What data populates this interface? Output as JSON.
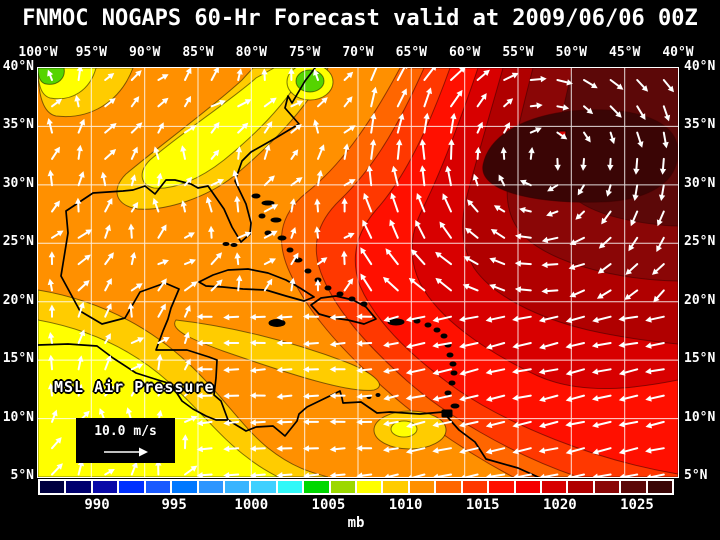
{
  "header": {
    "title": "FNMOC NOGAPS 60-Hr Forecast valid at 2009/06/06 00Z"
  },
  "map": {
    "lon_labels": [
      "100°W",
      "95°W",
      "90°W",
      "85°W",
      "80°W",
      "75°W",
      "70°W",
      "65°W",
      "60°W",
      "55°W",
      "50°W",
      "45°W",
      "40°W"
    ],
    "lat_labels": [
      "40°N",
      "35°N",
      "30°N",
      "25°N",
      "20°N",
      "15°N",
      "10°N",
      "5°N"
    ],
    "overlay_label": "MSL Air Pressure",
    "wind_legend": {
      "speed_label": "10.0 m/s"
    },
    "green_patch_color": "#55d400",
    "grid_color": "#ffffff",
    "coast_color": "#000000",
    "arrow_color": "#ffffff"
  },
  "colorbar": {
    "tick_labels": [
      "990",
      "995",
      "1000",
      "1005",
      "1010",
      "1015",
      "1020",
      "1025"
    ],
    "unit": "mb",
    "cell_colors": [
      "#000040",
      "#00006e",
      "#0a0aa8",
      "#0030ff",
      "#1a5aff",
      "#0078ff",
      "#2e96ff",
      "#38b4ff",
      "#40d0ff",
      "#30f8f8",
      "#00d800",
      "#9cd800",
      "#ffff00",
      "#ffcc00",
      "#ff9000",
      "#ff6600",
      "#ff3800",
      "#ff1000",
      "#f50000",
      "#d80000",
      "#b00000",
      "#8a0606",
      "#5c0808",
      "#3a0505"
    ]
  },
  "chart_data": {
    "type": "heatmap",
    "title": "FNMOC NOGAPS 60-Hr Forecast valid at 2009/06/06 00Z",
    "source": "FNMOC",
    "model": "NOGAPS",
    "forecast_hour": 60,
    "valid_time": "2009/06/06 00Z",
    "field": "MSL Air Pressure",
    "units": "mb",
    "x_axis": {
      "label": "longitude",
      "range": [
        "100°W",
        "40°W"
      ],
      "tick_interval_deg": 5,
      "ticks": [
        "100°W",
        "95°W",
        "90°W",
        "85°W",
        "80°W",
        "75°W",
        "70°W",
        "65°W",
        "60°W",
        "55°W",
        "50°W",
        "45°W",
        "40°W"
      ]
    },
    "y_axis": {
      "label": "latitude",
      "range": [
        "5°N",
        "40°N"
      ],
      "tick_interval_deg": 5,
      "ticks": [
        "40°N",
        "35°N",
        "30°N",
        "25°N",
        "20°N",
        "15°N",
        "10°N",
        "5°N"
      ]
    },
    "colorbar": {
      "tick_values": [
        990,
        995,
        1000,
        1005,
        1010,
        1015,
        1020,
        1025
      ],
      "unit": "mb",
      "colors": [
        "#000040",
        "#00006e",
        "#0a0aa8",
        "#0030ff",
        "#1a5aff",
        "#0078ff",
        "#2e96ff",
        "#38b4ff",
        "#40d0ff",
        "#30f8f8",
        "#00d800",
        "#9cd800",
        "#ffff00",
        "#ffcc00",
        "#ff9000",
        "#ff6600",
        "#ff3800",
        "#ff1000",
        "#f50000",
        "#d80000",
        "#b00000",
        "#8a0606",
        "#5c0808",
        "#3a0505"
      ]
    },
    "wind_reference": "10.0 m/s",
    "features": [
      "Strong subtropical high (>1024 mb, darkest maroon shading) centered near 33N 50W over the central Atlantic",
      "Clockwise (anticyclonic) wind circulation around the Atlantic high",
      "Steady easterly/northeasterly trade winds blowing westward south of about 20N",
      "Strong southerly flow along the western flank of the high near 70W-75W",
      "Lower pressure (~1006-1010 mb, yellow/green shading) along the US mid-Atlantic coast near 38N 75W and over the far northwest corner",
      "Pressure ~1008-1012 mb (yellow/gold/orange) over the Gulf of Mexico, Central America, eastern Pacific and near Trinidad",
      "Tight pressure gradient (packed contours) between 75W and 60W north of 25N"
    ]
  }
}
